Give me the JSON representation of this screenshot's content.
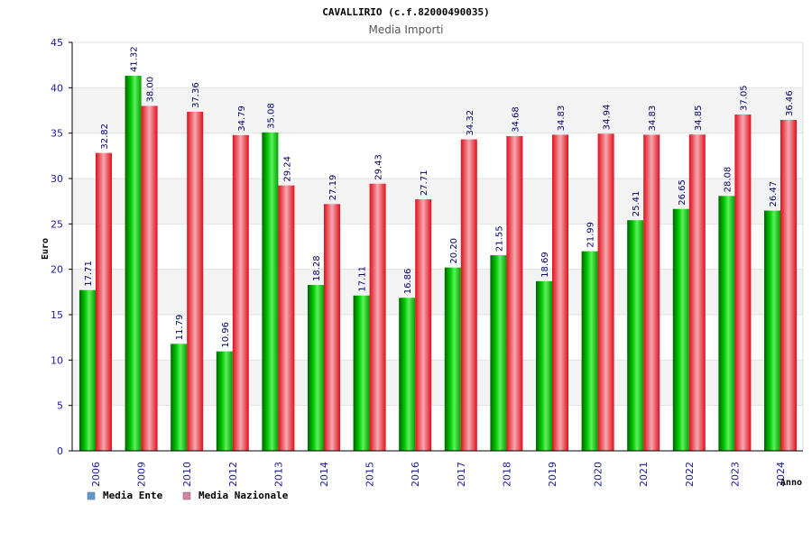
{
  "chart_data": {
    "type": "bar",
    "title": "CAVALLIRIO (c.f.82000490035)",
    "subtitle": "Media Importi",
    "xlabel": "Anno",
    "ylabel": "Euro",
    "ylim": [
      0,
      45
    ],
    "yticks": [
      0,
      5,
      10,
      15,
      20,
      25,
      30,
      35,
      40,
      45
    ],
    "grid": true,
    "legend": "bottom-left",
    "categories": [
      "2006",
      "2009",
      "2010",
      "2012",
      "2013",
      "2014",
      "2015",
      "2016",
      "2017",
      "2018",
      "2019",
      "2020",
      "2021",
      "2022",
      "2023",
      "2024"
    ],
    "series": [
      {
        "name": "Media Ente",
        "color": "#00c000",
        "legend_color": "#5b9bd5",
        "values": [
          17.71,
          41.32,
          11.79,
          10.96,
          35.08,
          18.28,
          17.11,
          16.86,
          20.2,
          21.55,
          18.69,
          21.99,
          25.41,
          26.65,
          28.08,
          26.47
        ],
        "labels": [
          "17.71",
          "41.32",
          "11.79",
          "10.96",
          "35.08",
          "18.28",
          "17.11",
          "16.86",
          "20.20",
          "21.55",
          "18.69",
          "21.99",
          "25.41",
          "26.65",
          "28.08",
          "26.47"
        ]
      },
      {
        "name": "Media Nazionale",
        "color": "#e8202a",
        "legend_color": "#d580a8",
        "values": [
          32.82,
          38.0,
          37.36,
          34.79,
          29.24,
          27.19,
          29.43,
          27.71,
          34.32,
          34.68,
          34.83,
          34.94,
          34.83,
          34.85,
          37.05,
          36.46
        ],
        "labels": [
          "32.82",
          "38.00",
          "37.36",
          "34.79",
          "29.24",
          "27.19",
          "29.43",
          "27.71",
          "34.32",
          "34.68",
          "34.83",
          "34.94",
          "34.83",
          "34.85",
          "37.05",
          "36.46"
        ]
      }
    ]
  }
}
